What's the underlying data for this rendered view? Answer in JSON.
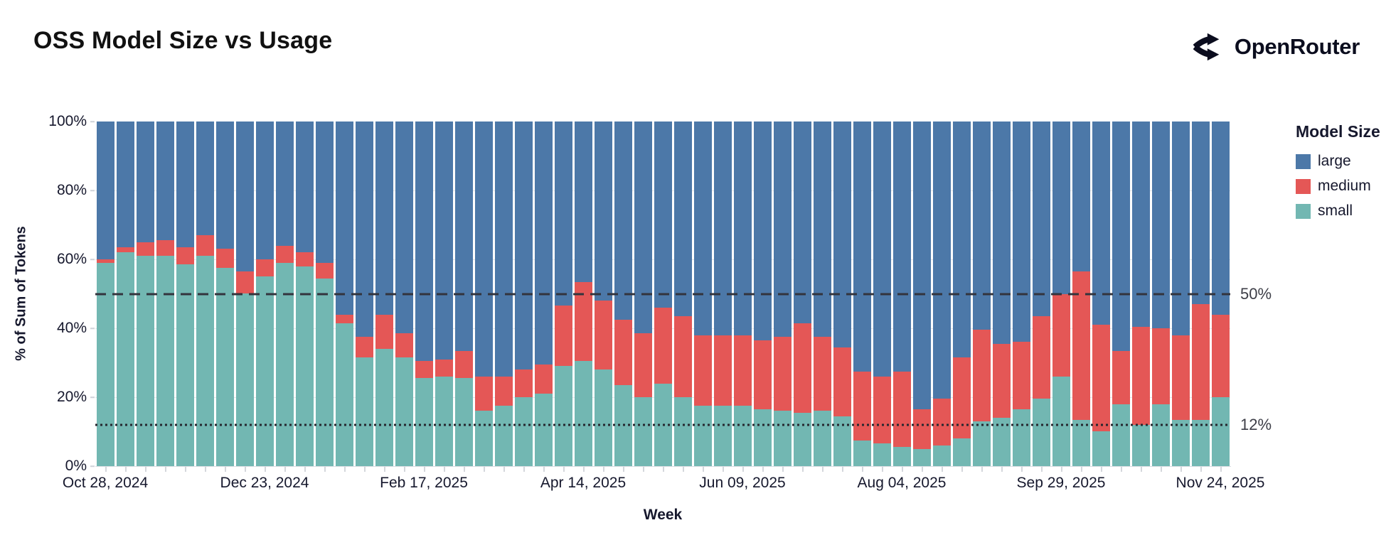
{
  "header": {
    "title": "OSS Model Size vs Usage",
    "brand": "OpenRouter",
    "brand_icon": "openrouter-branching-arrows-icon"
  },
  "chart_data": {
    "type": "bar",
    "stacked": true,
    "title": "OSS Model Size vs Usage",
    "xlabel": "Week",
    "ylabel": "% of Sum of Tokens",
    "legend_title": "Model Size",
    "legend_position": "right",
    "grid": true,
    "ylim": [
      0,
      100
    ],
    "y_ticks": [
      {
        "value": 0,
        "label": "0%"
      },
      {
        "value": 20,
        "label": "20%"
      },
      {
        "value": 40,
        "label": "40%"
      },
      {
        "value": 60,
        "label": "60%"
      },
      {
        "value": 80,
        "label": "80%"
      },
      {
        "value": 100,
        "label": "100%"
      }
    ],
    "x_tick_indices": [
      0,
      8,
      16,
      24,
      32,
      40,
      48,
      56
    ],
    "x_tick_labels": [
      "Oct 28, 2024",
      "Dec 23, 2024",
      "Feb 17, 2025",
      "Apr 14, 2025",
      "Jun 09, 2025",
      "Aug 04, 2025",
      "Sep 29, 2025",
      "Nov 24, 2025"
    ],
    "reference_lines": [
      {
        "value": 50,
        "label": "50%",
        "style": "dashed",
        "color": "#33343d"
      },
      {
        "value": 12,
        "label": "12%",
        "style": "dotted",
        "color": "#26272f"
      }
    ],
    "categories": [
      "Oct 28, 2024",
      "Nov 04, 2024",
      "Nov 11, 2024",
      "Nov 18, 2024",
      "Nov 25, 2024",
      "Dec 02, 2024",
      "Dec 09, 2024",
      "Dec 16, 2024",
      "Dec 23, 2024",
      "Dec 30, 2024",
      "Jan 06, 2025",
      "Jan 13, 2025",
      "Jan 20, 2025",
      "Jan 27, 2025",
      "Feb 03, 2025",
      "Feb 10, 2025",
      "Feb 17, 2025",
      "Feb 24, 2025",
      "Mar 03, 2025",
      "Mar 10, 2025",
      "Mar 17, 2025",
      "Mar 24, 2025",
      "Mar 31, 2025",
      "Apr 07, 2025",
      "Apr 14, 2025",
      "Apr 21, 2025",
      "Apr 28, 2025",
      "May 05, 2025",
      "May 12, 2025",
      "May 19, 2025",
      "May 26, 2025",
      "Jun 02, 2025",
      "Jun 09, 2025",
      "Jun 16, 2025",
      "Jun 23, 2025",
      "Jun 30, 2025",
      "Jul 07, 2025",
      "Jul 14, 2025",
      "Jul 21, 2025",
      "Jul 28, 2025",
      "Aug 04, 2025",
      "Aug 11, 2025",
      "Aug 18, 2025",
      "Aug 25, 2025",
      "Sep 01, 2025",
      "Sep 08, 2025",
      "Sep 15, 2025",
      "Sep 22, 2025",
      "Sep 29, 2025",
      "Oct 06, 2025",
      "Oct 13, 2025",
      "Oct 20, 2025",
      "Oct 27, 2025",
      "Nov 03, 2025",
      "Nov 10, 2025",
      "Nov 17, 2025",
      "Nov 24, 2025"
    ],
    "stack_order_bottom_to_top": [
      "small",
      "medium",
      "large"
    ],
    "series": [
      {
        "name": "large",
        "color": "#4c78a8",
        "values": [
          40,
          36.5,
          35,
          34.5,
          36.5,
          33,
          37,
          43.5,
          40,
          36,
          38,
          41,
          56,
          62.5,
          56,
          61.5,
          69.5,
          69,
          66.5,
          74,
          74,
          72,
          70.5,
          53.5,
          46.5,
          52,
          57.5,
          61.5,
          54,
          56.5,
          62,
          62,
          62,
          63.5,
          62.5,
          58.5,
          62.5,
          65.5,
          72.5,
          74,
          72.5,
          83.5,
          80.5,
          68.5,
          60.5,
          64.5,
          64,
          56.5,
          50,
          43.5,
          59,
          66.5,
          59.5,
          60,
          62,
          53,
          56
        ]
      },
      {
        "name": "medium",
        "color": "#e45756",
        "values": [
          1,
          1.5,
          4,
          4.5,
          5,
          6,
          5.5,
          6.5,
          5,
          5,
          4,
          4.5,
          2.5,
          6,
          10,
          7,
          5,
          5,
          8,
          10,
          8.5,
          8,
          8.5,
          17.5,
          23,
          20,
          19,
          18.5,
          22,
          23.5,
          20.5,
          20.5,
          20.5,
          20,
          21.5,
          26,
          21.5,
          20,
          20,
          19.5,
          22,
          11.5,
          13.5,
          23.5,
          26.5,
          21.5,
          19.5,
          24,
          24,
          43,
          31,
          15.5,
          28.5,
          22,
          24.5,
          33.5,
          24
        ]
      },
      {
        "name": "small",
        "color": "#72b7b2",
        "values": [
          59,
          62,
          61,
          61,
          58.5,
          61,
          57.5,
          50,
          55,
          59,
          58,
          54.5,
          41.5,
          31.5,
          34,
          31.5,
          25.5,
          26,
          25.5,
          16,
          17.5,
          20,
          21,
          29,
          30.5,
          28,
          23.5,
          20,
          24,
          20,
          17.5,
          17.5,
          17.5,
          16.5,
          16,
          15.5,
          16,
          14.5,
          7.5,
          6.5,
          5.5,
          5,
          6,
          8,
          13,
          14,
          16.5,
          19.5,
          26,
          13.5,
          10,
          18,
          12,
          18,
          13.5,
          13.5,
          20
        ]
      }
    ]
  }
}
